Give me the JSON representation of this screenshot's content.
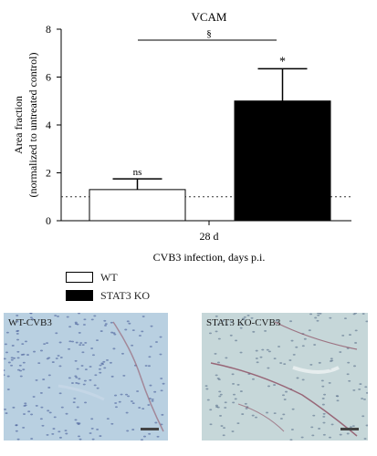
{
  "chart_data": {
    "type": "bar",
    "title": "VCAM",
    "ylabel_line1": "Area fraction",
    "ylabel_line2": "(normalized to untreated control)",
    "xlabel": "CVB3 infection, days p.i.",
    "categories": [
      "28 d"
    ],
    "ylim": [
      0,
      8
    ],
    "yticks": [
      0,
      2,
      4,
      6,
      8
    ],
    "baseline": 1,
    "series": [
      {
        "name": "WT",
        "values": [
          1.3
        ],
        "errors": [
          0.45
        ],
        "color": "#ffffff",
        "annotation": "ns"
      },
      {
        "name": "STAT3 KO",
        "values": [
          5.0
        ],
        "errors": [
          1.35
        ],
        "color": "#000000",
        "annotation": "*"
      }
    ],
    "comparison": {
      "symbol": "§"
    }
  },
  "images": [
    {
      "label": "WT-CVB3",
      "bg": "#b7cfe0"
    },
    {
      "label": "STAT3 KO-CVB3",
      "bg": "#c8d8da"
    }
  ]
}
